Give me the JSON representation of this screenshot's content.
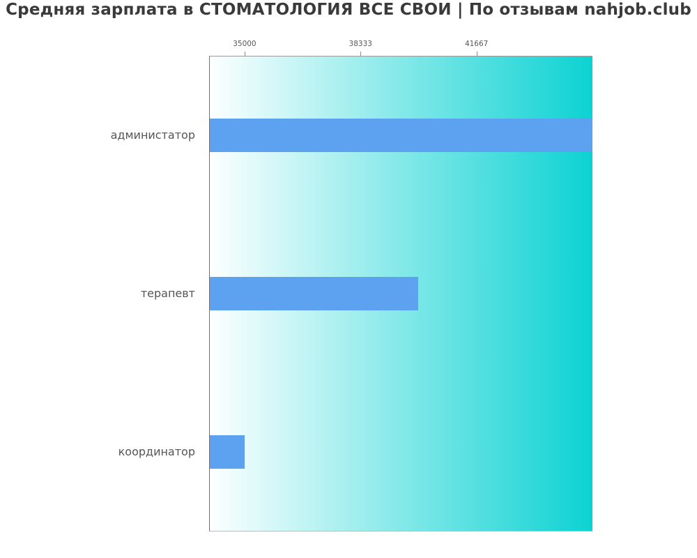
{
  "chart_data": {
    "type": "bar",
    "orientation": "horizontal",
    "title": "Средняя зарплата в СТОМАТОЛОГИЯ ВСЕ СВОИ | По отзывам nahjob.club",
    "categories": [
      "администатор",
      "терапевт",
      "координатор"
    ],
    "values": [
      45000,
      40000,
      35000
    ],
    "xlabel": "",
    "ylabel": "",
    "xlim": [
      34000,
      45000
    ],
    "xticks": [
      35000,
      38333,
      41667
    ],
    "xtick_labels": [
      "35000",
      "38333",
      "41667"
    ],
    "ticks_position": "top",
    "grid": false,
    "legend": null,
    "colors": {
      "bar": "#5ca2f0",
      "plot_bg_gradient_left": "#fdffff",
      "plot_bg_gradient_right": "#0cd2d2",
      "title_text": "#3a3a3a",
      "tick_label_text": "#565656",
      "category_label_text": "#555555"
    }
  }
}
